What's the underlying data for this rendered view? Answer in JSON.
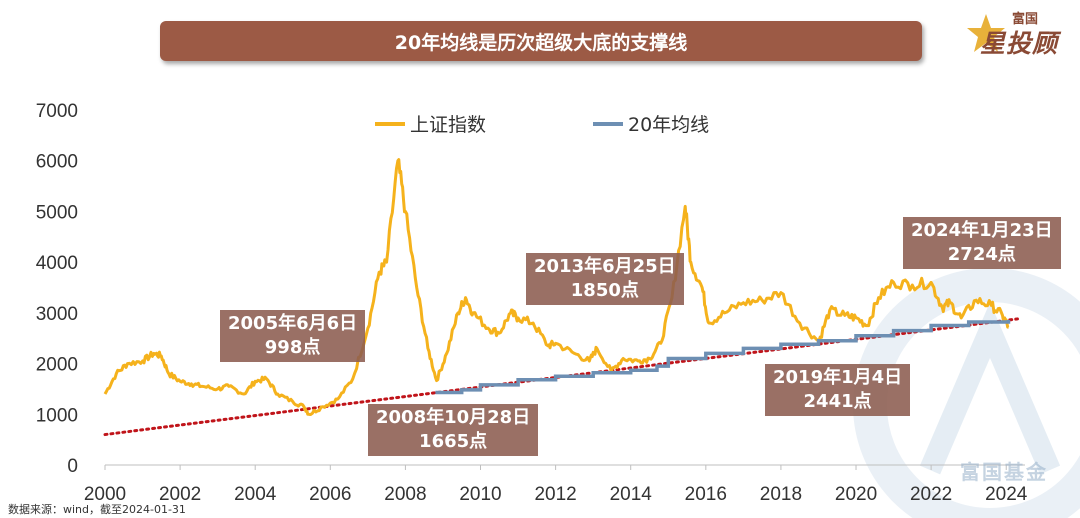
{
  "header": {
    "title": "20年均线是历次超级大底的支撑线",
    "logo_small": "富国",
    "logo_big": "星投顾"
  },
  "watermark": "富国基金",
  "source": "数据来源：wind，截至2024-01-31",
  "colors": {
    "index_line": "#f5b21c",
    "ma_line": "#6d8fb3",
    "trend_line": "#c0141a",
    "banner": "#9c5a45",
    "annotation": "#8c5c50"
  },
  "chart_data": {
    "type": "line",
    "xlim": [
      2000,
      2024.5
    ],
    "ylim": [
      0,
      7000
    ],
    "x_ticks": [
      2000,
      2002,
      2004,
      2006,
      2008,
      2010,
      2012,
      2014,
      2016,
      2018,
      2020,
      2022,
      2024
    ],
    "y_ticks": [
      0,
      1000,
      2000,
      3000,
      4000,
      5000,
      6000,
      7000
    ],
    "legend": {
      "position": "top-center"
    },
    "series": [
      {
        "name": "上证指数",
        "x": [
          2000.0,
          2000.3,
          2000.6,
          2001.0,
          2001.3,
          2001.5,
          2001.7,
          2002.0,
          2002.3,
          2002.6,
          2003.0,
          2003.3,
          2003.7,
          2004.0,
          2004.3,
          2004.6,
          2005.0,
          2005.3,
          2005.43,
          2005.8,
          2006.2,
          2006.6,
          2007.0,
          2007.3,
          2007.5,
          2007.8,
          2008.0,
          2008.3,
          2008.6,
          2008.83,
          2009.1,
          2009.4,
          2009.6,
          2009.8,
          2010.2,
          2010.5,
          2010.8,
          2011.0,
          2011.4,
          2011.8,
          2012.0,
          2012.5,
          2012.9,
          2013.1,
          2013.48,
          2013.8,
          2014.2,
          2014.5,
          2014.8,
          2015.1,
          2015.45,
          2015.6,
          2015.9,
          2016.08,
          2016.5,
          2017.0,
          2017.5,
          2018.0,
          2018.5,
          2019.01,
          2019.3,
          2019.7,
          2020.0,
          2020.3,
          2020.6,
          2021.0,
          2021.5,
          2022.0,
          2022.3,
          2022.5,
          2022.8,
          2023.2,
          2023.6,
          2023.9,
          2024.06
        ],
        "values": [
          1400,
          1800,
          2000,
          2050,
          2200,
          2150,
          1800,
          1650,
          1600,
          1550,
          1500,
          1550,
          1400,
          1650,
          1700,
          1400,
          1250,
          1150,
          998,
          1150,
          1300,
          1700,
          2700,
          3800,
          4000,
          6000,
          5000,
          3500,
          2300,
          1665,
          2200,
          3000,
          3300,
          3000,
          2700,
          2600,
          3000,
          2900,
          2800,
          2350,
          2400,
          2200,
          2050,
          2300,
          1850,
          2100,
          2050,
          2100,
          2400,
          3300,
          5100,
          4000,
          3500,
          2800,
          3000,
          3200,
          3250,
          3400,
          2800,
          2441,
          3050,
          2950,
          2900,
          2750,
          3300,
          3600,
          3550,
          3600,
          3100,
          3200,
          2900,
          3250,
          3150,
          2950,
          2724
        ]
      },
      {
        "name": "20年均线",
        "x": [
          2008.8,
          2009.5,
          2010.0,
          2011.0,
          2012.0,
          2013.0,
          2014.0,
          2014.7,
          2015.0,
          2016.0,
          2017.0,
          2018.0,
          2019.0,
          2020.0,
          2021.0,
          2022.0,
          2023.0,
          2024.06
        ],
        "values": [
          1430,
          1480,
          1580,
          1680,
          1750,
          1820,
          1870,
          1950,
          2100,
          2200,
          2300,
          2380,
          2450,
          2550,
          2650,
          2750,
          2820,
          2860
        ]
      }
    ],
    "trend_line": {
      "x": [
        2000,
        2024.3
      ],
      "values": [
        600,
        2880
      ]
    },
    "annotations": [
      {
        "lines": [
          "2005年6月6日",
          "998点"
        ]
      },
      {
        "lines": [
          "2008年10月28日",
          "1665点"
        ]
      },
      {
        "lines": [
          "2013年6月25日",
          "1850点"
        ]
      },
      {
        "lines": [
          "2019年1月4日",
          "2441点"
        ]
      },
      {
        "lines": [
          "2024年1月23日",
          "2724点"
        ]
      }
    ]
  }
}
